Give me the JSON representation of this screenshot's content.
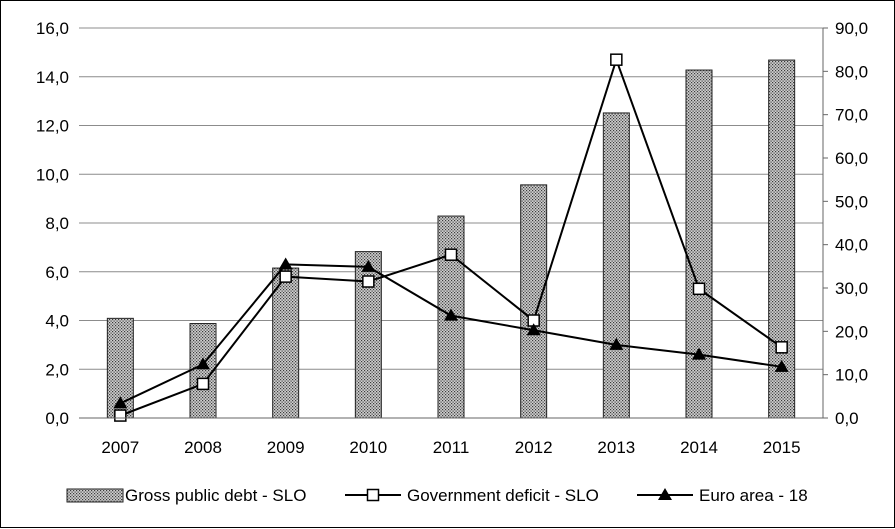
{
  "chart_data": {
    "type": "bar+line",
    "categories": [
      "2007",
      "2008",
      "2009",
      "2010",
      "2011",
      "2012",
      "2013",
      "2014",
      "2015"
    ],
    "left_axis": {
      "range": [
        0,
        16
      ],
      "ticks": [
        "0,0",
        "2,0",
        "4,0",
        "6,0",
        "8,0",
        "10,0",
        "12,0",
        "14,0",
        "16,0"
      ]
    },
    "right_axis": {
      "range": [
        0,
        90
      ],
      "ticks": [
        "0,0",
        "10,0",
        "20,0",
        "30,0",
        "40,0",
        "50,0",
        "60,0",
        "70,0",
        "80,0",
        "90,0"
      ]
    },
    "grid": true,
    "legend_position": "bottom",
    "series": [
      {
        "name": "Gross public debt - SLO",
        "type": "bar",
        "axis": "right",
        "values": [
          23.0,
          21.8,
          34.6,
          38.4,
          46.6,
          53.8,
          70.4,
          80.3,
          82.6
        ]
      },
      {
        "name": "Government deficit - SLO",
        "type": "line",
        "marker": "square",
        "axis": "left",
        "values": [
          0.1,
          1.4,
          5.8,
          5.6,
          6.7,
          4.0,
          14.7,
          5.3,
          2.9
        ]
      },
      {
        "name": "Euro area - 18",
        "type": "line",
        "marker": "triangle",
        "axis": "left",
        "values": [
          0.6,
          2.2,
          6.3,
          6.2,
          4.2,
          3.6,
          3.0,
          2.6,
          2.1
        ]
      }
    ]
  }
}
